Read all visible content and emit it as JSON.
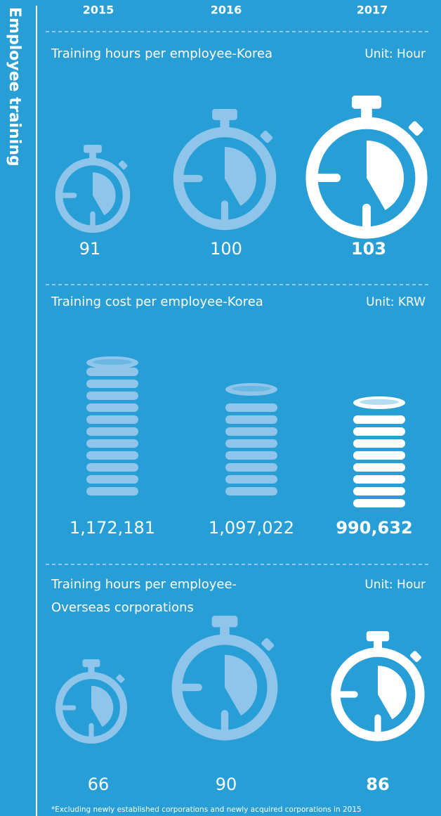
{
  "title": "Employee training",
  "years": [
    "2015",
    "2016",
    "2017"
  ],
  "sections": [
    {
      "title_lines": [
        "Training hours per employee-Korea"
      ],
      "unit": "Unit: Hour",
      "values": [
        "91",
        "100",
        "103"
      ]
    },
    {
      "title_lines": [
        "Training cost per employee-Korea"
      ],
      "unit": "Unit: KRW",
      "values": [
        "1,172,181",
        "1,097,022",
        "990,632"
      ]
    },
    {
      "title_lines": [
        "Training hours per employee-",
        "Overseas corporations"
      ],
      "unit": "Unit: Hour",
      "values": [
        "66",
        "90",
        "86"
      ]
    }
  ],
  "footnote": "*Excluding newly established corporations and newly acquired corporations in 2015"
}
